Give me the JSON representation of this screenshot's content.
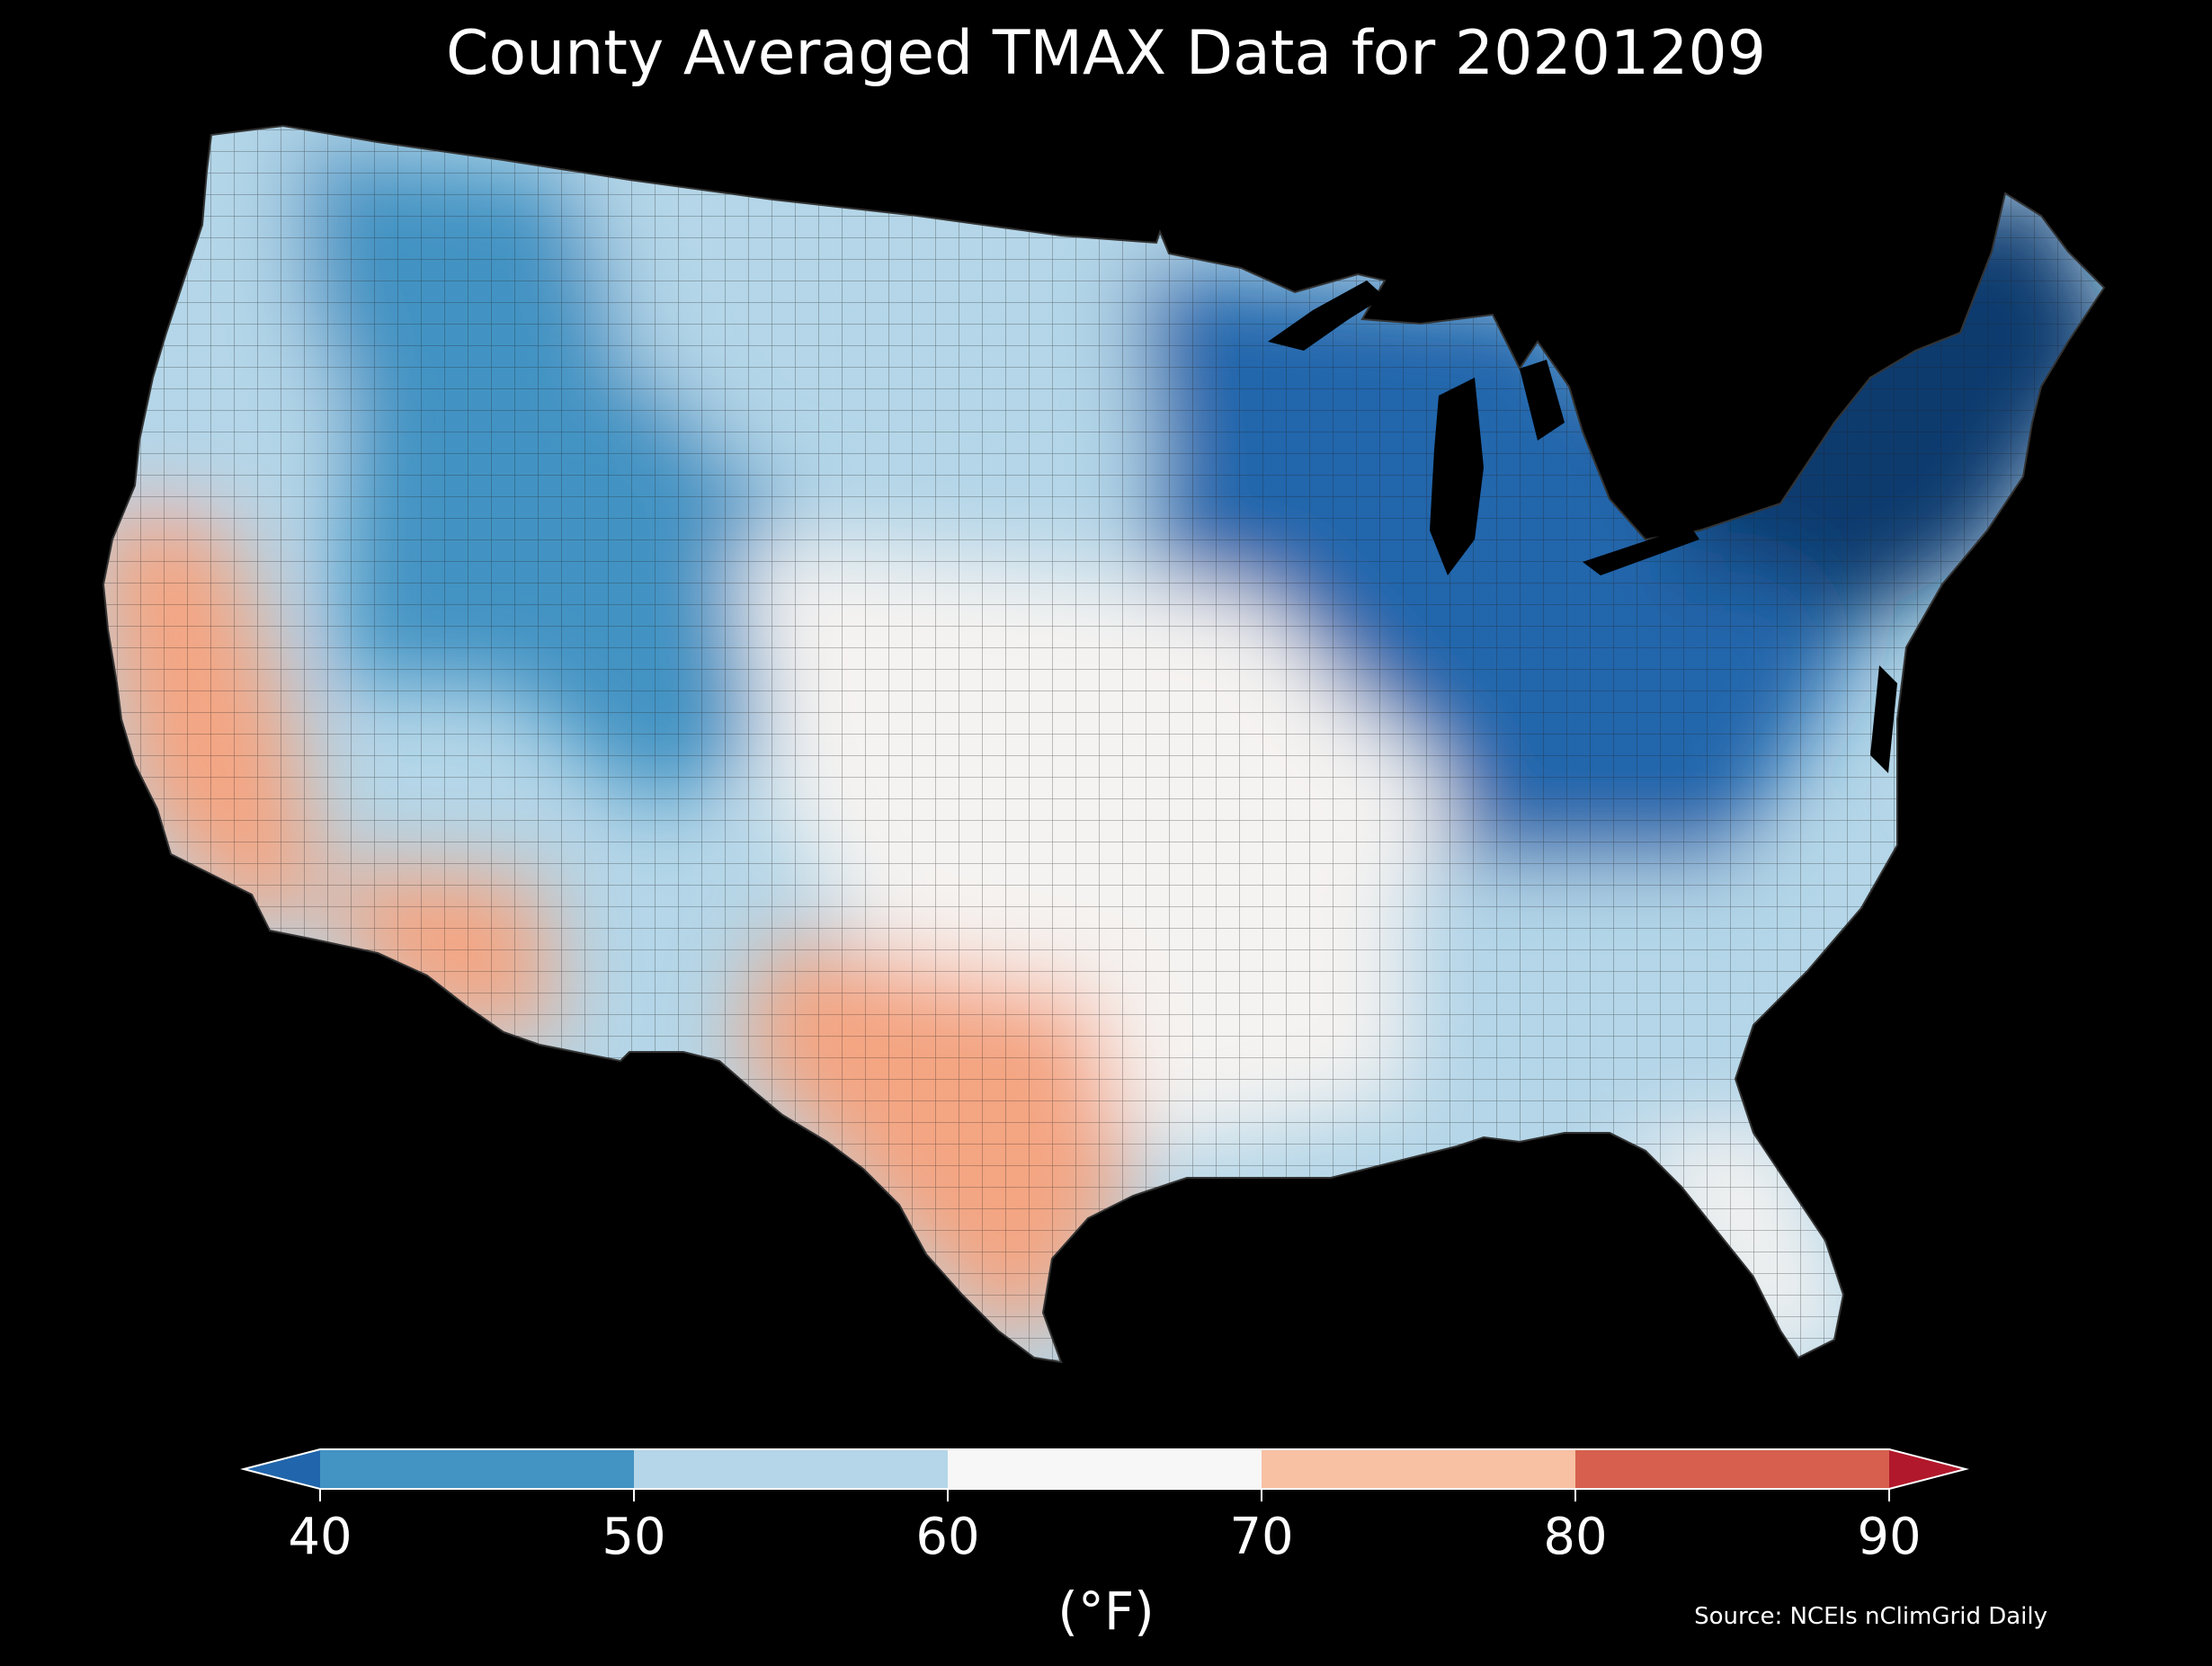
{
  "title": "County Averaged TMAX Data for 20201209",
  "colorbar": {
    "ticks": [
      "40",
      "50",
      "60",
      "70",
      "80",
      "90"
    ],
    "unit": "(°F)",
    "bins": [
      {
        "from": 40,
        "to": 50,
        "color": "#4393c3"
      },
      {
        "from": 50,
        "to": 60,
        "color": "#b4d6e8"
      },
      {
        "from": 60,
        "to": 70,
        "color": "#f7f7f7"
      },
      {
        "from": 70,
        "to": 80,
        "color": "#f8c1a4"
      },
      {
        "from": 80,
        "to": 90,
        "color": "#d6604d"
      }
    ],
    "under_color": "#2166ac",
    "over_color": "#b2182b"
  },
  "source": "Source: NCEIs nClimGrid Daily",
  "colors": {
    "background": "#000000",
    "cold_deep": "#0b3a6e",
    "cold": "#2166ac",
    "cool": "#4393c3",
    "mild": "#b4d6e8",
    "neutral": "#f5f3f1",
    "warm": "#f4a582"
  },
  "regions": {
    "northeast": "cold_deep",
    "great_lakes": "cold",
    "appalachia": "cold",
    "northern_rockies": "cool",
    "great_basin": "cool",
    "northern_plains": "mild",
    "pacific_northwest": "mild",
    "central_plains": "neutral",
    "southeast": "mild",
    "florida": "neutral",
    "california": "warm",
    "arizona": "warm",
    "texas": "warm"
  }
}
